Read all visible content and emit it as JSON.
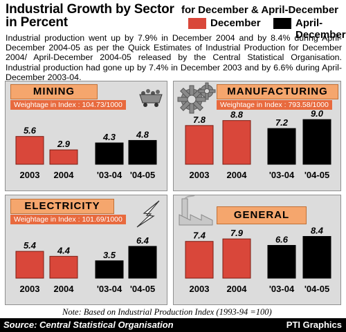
{
  "header": {
    "title_line1": "Industrial Growth by Sector",
    "title_line2": "in Percent",
    "period_label": "for December & April-December"
  },
  "legend": [
    {
      "label": "December",
      "color": "#d9473a"
    },
    {
      "label": "April-December",
      "color": "#000000"
    }
  ],
  "intro_text": "Industrial production went up by 7.9% in December 2004 and by 8.4% during April-December 2004-05 as per the Quick Estimates of Industrial Production for December 2004/ April-December 2004-05 released by the Central Statistical Organisation. Industrial production had gone up by 7.4% in December 2003 and by 6.6% during April-December 2003-04.",
  "chart_data": [
    {
      "type": "bar",
      "title": "MINING",
      "weightage": "Weightage in Index : 104.73/1000",
      "categories": [
        "2003",
        "2004",
        "'03-04",
        "'04-05"
      ],
      "series": [
        {
          "name": "December",
          "values": [
            5.6,
            2.9,
            null,
            null
          ]
        },
        {
          "name": "April-December",
          "values": [
            null,
            null,
            4.3,
            4.8
          ]
        }
      ],
      "data_labels": [
        "5.6",
        "2.9",
        "4.3",
        "4.8"
      ]
    },
    {
      "type": "bar",
      "title": "MANUFACTURING",
      "weightage": "Weightage in Index : 793.58/1000",
      "categories": [
        "2003",
        "2004",
        "'03-04",
        "'04-05"
      ],
      "series": [
        {
          "name": "December",
          "values": [
            7.8,
            8.8,
            null,
            null
          ]
        },
        {
          "name": "April-December",
          "values": [
            null,
            null,
            7.2,
            9.0
          ]
        }
      ],
      "data_labels": [
        "7.8",
        "8.8",
        "7.2",
        "9.0"
      ]
    },
    {
      "type": "bar",
      "title": "ELECTRICITY",
      "weightage": "Weightage in Index : 101.69/1000",
      "categories": [
        "2003",
        "2004",
        "'03-04",
        "'04-05"
      ],
      "series": [
        {
          "name": "December",
          "values": [
            5.4,
            4.4,
            null,
            null
          ]
        },
        {
          "name": "April-December",
          "values": [
            null,
            null,
            3.5,
            6.4
          ]
        }
      ],
      "data_labels": [
        "5.4",
        "4.4",
        "3.5",
        "6.4"
      ]
    },
    {
      "type": "bar",
      "title": "GENERAL",
      "weightage": "",
      "categories": [
        "2003",
        "2004",
        "'03-04",
        "'04-05"
      ],
      "series": [
        {
          "name": "December",
          "values": [
            7.4,
            7.9,
            null,
            null
          ]
        },
        {
          "name": "April-December",
          "values": [
            null,
            null,
            6.6,
            8.4
          ]
        }
      ],
      "data_labels": [
        "7.4",
        "7.9",
        "6.6",
        "8.4"
      ]
    }
  ],
  "note": "Note: Based on Industrial Production Index (1993-94 =100)",
  "footer": {
    "source": "Source: Central Statistical Organisation",
    "credit": "PTI Graphics"
  },
  "colors": {
    "december_bar": "#d9473a",
    "april_december_bar": "#000000",
    "title_tag": "#f5a66d",
    "weightage_tag": "#e86a3e",
    "panel_bg": "#dcdcdc"
  },
  "icons": [
    "mining-cart-icon",
    "gears-icon",
    "lightning-bolt-icon",
    "factory-icon"
  ]
}
